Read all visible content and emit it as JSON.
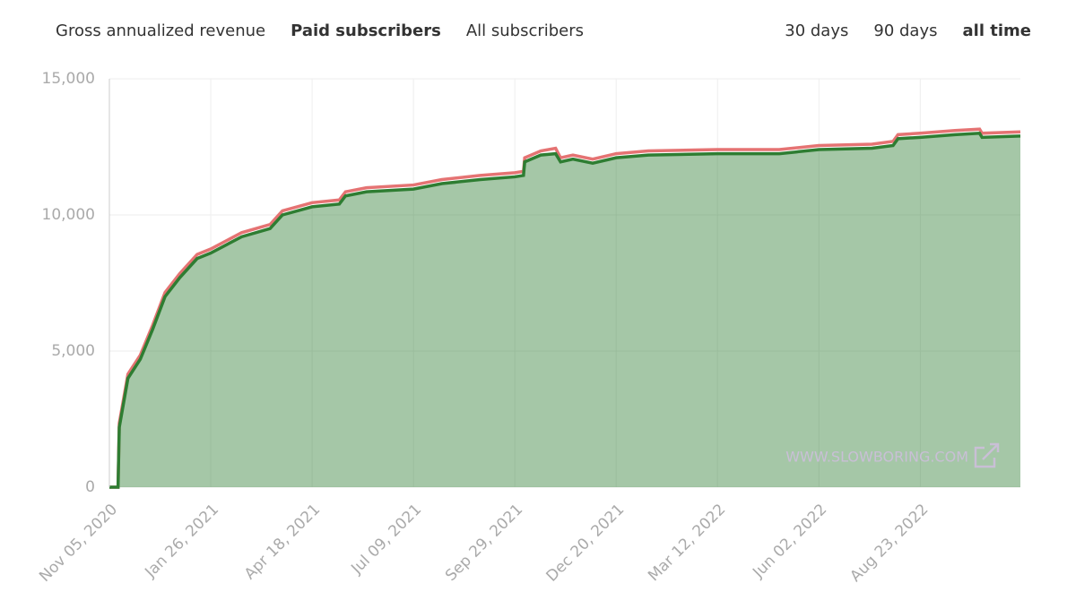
{
  "tabs": [
    "Gross annualized revenue",
    "Paid subscribers",
    "All subscribers"
  ],
  "ranges": [
    "30 days",
    "90 days",
    "all time"
  ],
  "watermark": "WWW.SLOWBORING.COM",
  "chart_data": {
    "type": "area",
    "x": [
      "2020-11-05",
      "2020-11-12",
      "2020-11-13",
      "2020-11-20",
      "2020-11-30",
      "2020-12-10",
      "2020-12-20",
      "2021-01-01",
      "2021-01-15",
      "2021-01-26",
      "2021-02-20",
      "2021-03-15",
      "2021-03-25",
      "2021-04-18",
      "2021-05-10",
      "2021-05-15",
      "2021-06-01",
      "2021-07-09",
      "2021-08-01",
      "2021-09-01",
      "2021-09-29",
      "2021-10-06",
      "2021-10-07",
      "2021-10-20",
      "2021-11-01",
      "2021-11-05",
      "2021-11-15",
      "2021-12-01",
      "2021-12-20",
      "2022-01-15",
      "2022-03-12",
      "2022-05-01",
      "2022-06-02",
      "2022-07-15",
      "2022-08-01",
      "2022-08-05",
      "2022-08-23",
      "2022-09-20",
      "2022-10-10",
      "2022-10-12",
      "2022-11-12"
    ],
    "series": [
      {
        "color": "#2e7d32",
        "values": [
          0,
          0,
          2200,
          4000,
          4700,
          5800,
          7000,
          7700,
          8400,
          8600,
          9200,
          9500,
          10000,
          10300,
          10400,
          10700,
          10850,
          10950,
          11150,
          11300,
          11400,
          11450,
          11950,
          12200,
          12250,
          11950,
          12050,
          11900,
          12100,
          12200,
          12250,
          12250,
          12400,
          12450,
          12550,
          12800,
          12850,
          12950,
          13000,
          12850,
          12900
        ]
      },
      {
        "color": "#e57373",
        "values": [
          0,
          0,
          2350,
          4150,
          4850,
          5950,
          7150,
          7850,
          8550,
          8750,
          9350,
          9650,
          10150,
          10450,
          10550,
          10850,
          11000,
          11100,
          11300,
          11450,
          11550,
          11600,
          12100,
          12350,
          12450,
          12100,
          12200,
          12050,
          12250,
          12350,
          12400,
          12400,
          12550,
          12600,
          12700,
          12950,
          13000,
          13100,
          13150,
          13000,
          13050
        ]
      }
    ],
    "xlim": [
      "2020-11-05",
      "2022-11-12"
    ],
    "xticks": [
      {
        "value": "2020-11-05",
        "label": "Nov 05, 2020"
      },
      {
        "value": "2021-01-26",
        "label": "Jan 26, 2021"
      },
      {
        "value": "2021-04-18",
        "label": "Apr 18, 2021"
      },
      {
        "value": "2021-07-09",
        "label": "Jul 09, 2021"
      },
      {
        "value": "2021-09-29",
        "label": "Sep 29, 2021"
      },
      {
        "value": "2021-12-20",
        "label": "Dec 20, 2021"
      },
      {
        "value": "2022-03-12",
        "label": "Mar 12, 2022"
      },
      {
        "value": "2022-06-02",
        "label": "Jun 02, 2022"
      },
      {
        "value": "2022-08-23",
        "label": "Aug 23, 2022"
      }
    ],
    "ylim": [
      0,
      15000
    ],
    "yticks": [
      0,
      {
        "value": 5000,
        "label": "5,000"
      },
      {
        "value": 10000,
        "label": "10,000"
      },
      {
        "value": 15000,
        "label": "15,000"
      }
    ],
    "grid": true
  }
}
